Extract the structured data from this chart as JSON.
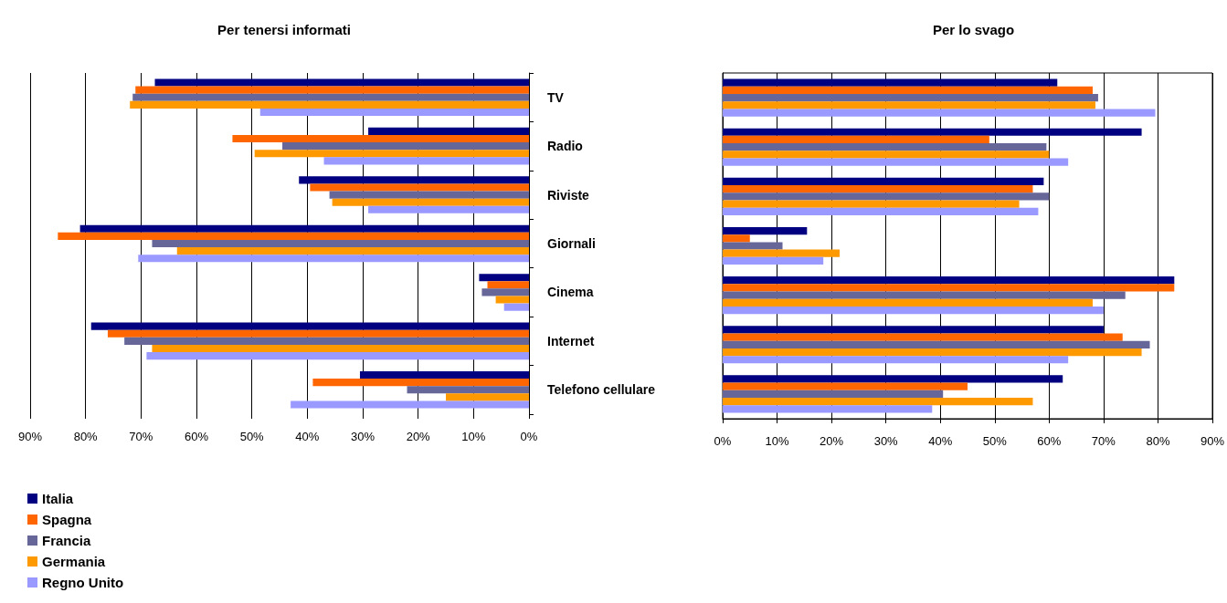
{
  "chart_data": [
    {
      "type": "bar",
      "orientation": "horizontal",
      "title": "Per tenersi informati",
      "categories": [
        "TV",
        "Radio",
        "Riviste",
        "Giornali",
        "Cinema",
        "Internet",
        "Telefono cellulare"
      ],
      "series": [
        {
          "name": "Italia",
          "color": "#000080",
          "values": [
            67.5,
            29,
            41.5,
            81,
            9,
            79,
            30.5
          ]
        },
        {
          "name": "Spagna",
          "color": "#ff6600",
          "values": [
            71,
            53.5,
            39.5,
            85,
            7.5,
            76,
            39
          ]
        },
        {
          "name": "Francia",
          "color": "#666699",
          "values": [
            71.5,
            44.5,
            36,
            68,
            8.5,
            73,
            22
          ]
        },
        {
          "name": "Germania",
          "color": "#ff9900",
          "values": [
            72,
            49.5,
            35.5,
            63.5,
            6,
            68,
            15
          ]
        },
        {
          "name": "Regno Unito",
          "color": "#9999ff",
          "values": [
            48.5,
            37,
            29,
            70.5,
            4.5,
            69,
            43
          ]
        }
      ],
      "xlim": [
        90,
        0
      ],
      "xticks": [
        {
          "value": 90,
          "label": "90%"
        },
        {
          "value": 80,
          "label": "80%"
        },
        {
          "value": 70,
          "label": "70%"
        },
        {
          "value": 60,
          "label": "60%"
        },
        {
          "value": 50,
          "label": "50%"
        },
        {
          "value": 40,
          "label": "40%"
        },
        {
          "value": 30,
          "label": "30%"
        },
        {
          "value": 20,
          "label": "20%"
        },
        {
          "value": 10,
          "label": "10%"
        },
        {
          "value": 0,
          "label": "0%"
        }
      ],
      "grid": "x",
      "legend": "bottom left"
    },
    {
      "type": "bar",
      "orientation": "horizontal",
      "title": "Per lo svago",
      "categories": [
        null,
        null,
        null,
        null,
        null,
        null,
        null
      ],
      "series": [
        {
          "color": "#000080",
          "values": [
            61.5,
            77,
            59,
            15.5,
            83,
            70,
            62.5
          ]
        },
        {
          "color": "#ff6600",
          "values": [
            68,
            49,
            57,
            5,
            83,
            73.5,
            45
          ]
        },
        {
          "color": "#666699",
          "values": [
            69,
            59.5,
            60,
            11,
            74,
            78.5,
            40.5
          ]
        },
        {
          "color": "#ff9900",
          "values": [
            68.5,
            60,
            54.5,
            21.5,
            68,
            77,
            57
          ]
        },
        {
          "color": "#9999ff",
          "values": [
            79.5,
            63.5,
            58,
            18.5,
            70,
            63.5,
            38.5
          ]
        }
      ],
      "xlim": [
        0,
        90
      ],
      "xticks": [
        {
          "value": 0,
          "label": "0%"
        },
        {
          "value": 10,
          "label": "10%"
        },
        {
          "value": 20,
          "label": "20%"
        },
        {
          "value": 30,
          "label": "30%"
        },
        {
          "value": 40,
          "label": "40%"
        },
        {
          "value": 50,
          "label": "50%"
        },
        {
          "value": 60,
          "label": "60%"
        },
        {
          "value": 70,
          "label": "70%"
        },
        {
          "value": 80,
          "label": "80%"
        },
        {
          "value": 90,
          "label": "90%"
        }
      ],
      "grid": "x"
    }
  ]
}
